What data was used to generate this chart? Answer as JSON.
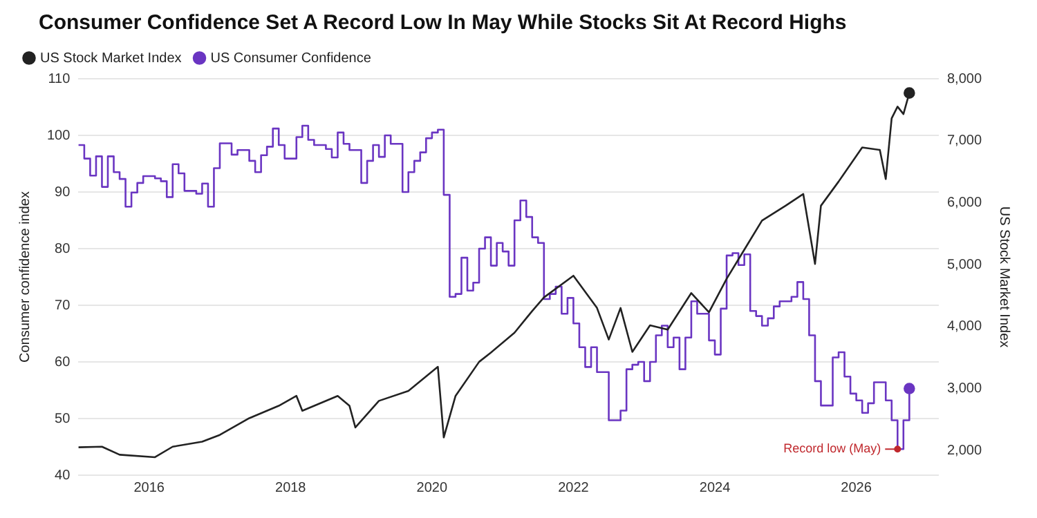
{
  "chart_data": {
    "type": "line",
    "title": "Consumer Confidence Set A Record Low In May While Stocks Sit At Record Highs",
    "ylabel": "Consumer confidence index",
    "y2label": "US Stock Market Index",
    "xlim": [
      "2015-01",
      "2027-03"
    ],
    "xticks": [
      "2016",
      "2018",
      "2020",
      "2022",
      "2024",
      "2026"
    ],
    "ylim": [
      40,
      110
    ],
    "yticks": [
      40,
      50,
      60,
      70,
      80,
      90,
      100,
      110
    ],
    "y2lim": [
      1600,
      8000
    ],
    "y2ticks": [
      {
        "value": 2000,
        "label": "2,000"
      },
      {
        "value": 3000,
        "label": "3,000"
      },
      {
        "value": 4000,
        "label": "4,000"
      },
      {
        "value": 5000,
        "label": "5,000"
      },
      {
        "value": 6000,
        "label": "6,000"
      },
      {
        "value": 7000,
        "label": "7,000"
      },
      {
        "value": 8000,
        "label": "8,000"
      }
    ],
    "grid": "y",
    "legend": "top left",
    "line_style": "solid",
    "annotations": [
      {
        "text": "Record low (May)",
        "x": "2026-08",
        "y": 44.6
      }
    ],
    "series": [
      {
        "name": "US Stock Market Index",
        "type": "line",
        "axis": "y2",
        "color": "#222222",
        "x": [
          "2015-01",
          "2015-05",
          "2015-08",
          "2016-02",
          "2016-05",
          "2016-10",
          "2017-01",
          "2017-06",
          "2017-11",
          "2018-02",
          "2018-03",
          "2018-09",
          "2018-11",
          "2018-12",
          "2019-04",
          "2019-09",
          "2020-02",
          "2020-03",
          "2020-05",
          "2020-09",
          "2020-11",
          "2021-03",
          "2021-06",
          "2021-08",
          "2022-01",
          "2022-05",
          "2022-07",
          "2022-09",
          "2022-11",
          "2023-02",
          "2023-05",
          "2023-09",
          "2023-12",
          "2024-03",
          "2024-06",
          "2024-09",
          "2025-01",
          "2025-04",
          "2025-06",
          "2025-07",
          "2025-10",
          "2026-02",
          "2026-05",
          "2026-06",
          "2026-07",
          "2026-08",
          "2026-09",
          "2026-10"
        ],
        "values": [
          2050,
          2060,
          1930,
          1890,
          2060,
          2140,
          2250,
          2520,
          2720,
          2880,
          2640,
          2880,
          2720,
          2370,
          2800,
          2960,
          3350,
          2210,
          2880,
          3430,
          3580,
          3900,
          4250,
          4470,
          4820,
          4300,
          3790,
          4300,
          3590,
          4020,
          3950,
          4540,
          4230,
          4770,
          5240,
          5710,
          5950,
          6140,
          5010,
          5950,
          6340,
          6890,
          6850,
          6380,
          7360,
          7550,
          7430,
          7770
        ]
      },
      {
        "name": "US Consumer Confidence",
        "type": "step",
        "color": "#6a35c2",
        "x": [
          "2015-01",
          "2015-02",
          "2015-03",
          "2015-04",
          "2015-05",
          "2015-06",
          "2015-07",
          "2015-08",
          "2015-09",
          "2015-10",
          "2015-11",
          "2015-12",
          "2016-02",
          "2016-03",
          "2016-04",
          "2016-05",
          "2016-06",
          "2016-07",
          "2016-09",
          "2016-10",
          "2016-11",
          "2016-12",
          "2017-01",
          "2017-03",
          "2017-04",
          "2017-06",
          "2017-07",
          "2017-08",
          "2017-09",
          "2017-10",
          "2017-11",
          "2017-12",
          "2018-02",
          "2018-03",
          "2018-04",
          "2018-05",
          "2018-07",
          "2018-08",
          "2018-09",
          "2018-10",
          "2018-11",
          "2019-01",
          "2019-02",
          "2019-03",
          "2019-04",
          "2019-05",
          "2019-06",
          "2019-08",
          "2019-09",
          "2019-10",
          "2019-11",
          "2019-12",
          "2020-01",
          "2020-02",
          "2020-03",
          "2020-04",
          "2020-05",
          "2020-06",
          "2020-07",
          "2020-08",
          "2020-09",
          "2020-10",
          "2020-11",
          "2020-12",
          "2021-01",
          "2021-02",
          "2021-03",
          "2021-04",
          "2021-05",
          "2021-06",
          "2021-07",
          "2021-08",
          "2021-09",
          "2021-10",
          "2021-11",
          "2021-12",
          "2022-01",
          "2022-02",
          "2022-03",
          "2022-04",
          "2022-05",
          "2022-07",
          "2022-09",
          "2022-10",
          "2022-11",
          "2022-12",
          "2023-01",
          "2023-02",
          "2023-03",
          "2023-04",
          "2023-05",
          "2023-06",
          "2023-07",
          "2023-08",
          "2023-09",
          "2023-10",
          "2023-12",
          "2024-01",
          "2024-02",
          "2024-03",
          "2024-04",
          "2024-05",
          "2024-06",
          "2024-07",
          "2024-08",
          "2024-09",
          "2024-10",
          "2024-11",
          "2024-12",
          "2025-02",
          "2025-03",
          "2025-04",
          "2025-05",
          "2025-06",
          "2025-07",
          "2025-09",
          "2025-10",
          "2025-11",
          "2025-12",
          "2026-01",
          "2026-02",
          "2026-03",
          "2026-04",
          "2026-06",
          "2026-07",
          "2026-08",
          "2026-09",
          "2026-10"
        ],
        "values": [
          98.3,
          95.9,
          92.9,
          96.3,
          90.9,
          96.3,
          93.5,
          92.3,
          87.4,
          89.9,
          91.6,
          92.8,
          92.4,
          91.9,
          89.1,
          94.9,
          93.3,
          90.2,
          89.7,
          91.5,
          87.4,
          94.2,
          98.6,
          96.6,
          97.4,
          95.5,
          93.5,
          96.5,
          98,
          101.2,
          98.3,
          95.9,
          99.7,
          101.7,
          99.2,
          98.3,
          97.6,
          96.1,
          100.5,
          98.5,
          97.4,
          91.6,
          95.5,
          98.3,
          96.2,
          100,
          98.5,
          90,
          93.5,
          95.5,
          97,
          99.5,
          100.5,
          101,
          89.5,
          71.5,
          72,
          78.4,
          72.6,
          74,
          80,
          82,
          77,
          81,
          79.5,
          77,
          85,
          88.5,
          85.6,
          82,
          81,
          71.1,
          72,
          73.3,
          68.5,
          71.3,
          66.8,
          62.6,
          59.1,
          62.6,
          58.2,
          49.7,
          51.4,
          58.7,
          59.5,
          60,
          56.6,
          60,
          64.7,
          66.4,
          62.6,
          64.3,
          58.7,
          64.3,
          70.7,
          68.5,
          63.8,
          61.3,
          69.4,
          78.8,
          79.2,
          77.1,
          79,
          69,
          68.1,
          66.4,
          67.7,
          69.8,
          70.7,
          71.5,
          74.1,
          71.1,
          64.7,
          56.6,
          52.3,
          60.8,
          61.7,
          57.4,
          54.4,
          53.2,
          51,
          52.7,
          56.4,
          53.2,
          49.7,
          44.6,
          49.7,
          55.3
        ]
      }
    ]
  }
}
